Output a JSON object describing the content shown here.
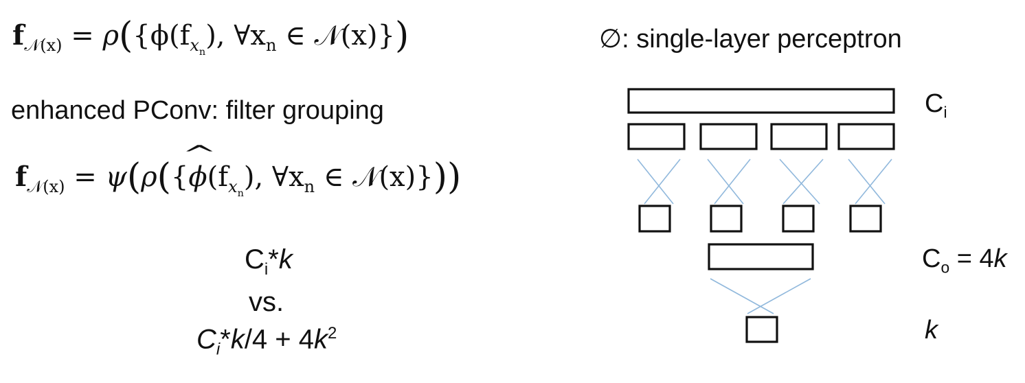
{
  "formula_plain": {
    "lhs": "f",
    "lhs_sub": "𝒩(x)",
    "eq": "=",
    "func": "ρ",
    "body": "{ϕ(f",
    "body_sub": "x",
    "body_sub2": "n",
    "rest": "), ∀x",
    "rest_sub": "n",
    "rest2": "∈ 𝒩(x)}"
  },
  "formula_grouped": {
    "lhs": "f",
    "lhs_sub": "𝒩(x)",
    "eq": "=",
    "outer": "ψ",
    "func": "ρ",
    "body_phi": "ϕ",
    "body_f": "(f",
    "body_sub": "x",
    "body_sub2": "n",
    "rest": "), ∀x",
    "rest_sub": "n",
    "rest2": "∈ 𝒩(x)}"
  },
  "subtitle": "enhanced PConv: filter grouping",
  "comparison": {
    "line1_c": "C",
    "line1_sub": "i",
    "line1_rest": "*",
    "line1_k": "k",
    "line2": "vs.",
    "line3_c": "C",
    "line3_sub": "i",
    "line3_rest": "*",
    "line3_k": "k",
    "line3_div": "/4 + 4",
    "line3_k2": "k",
    "line3_sup": "2"
  },
  "phi_label": "∅: single-layer perceptron",
  "diagram_labels": {
    "ci_c": "C",
    "ci_sub": "i",
    "co_c": "C",
    "co_sub": "o",
    "co_rest": " = 4",
    "co_k": "k",
    "k": "k"
  },
  "colors": {
    "box_stroke": "#111111",
    "connector": "#90b8dc"
  }
}
